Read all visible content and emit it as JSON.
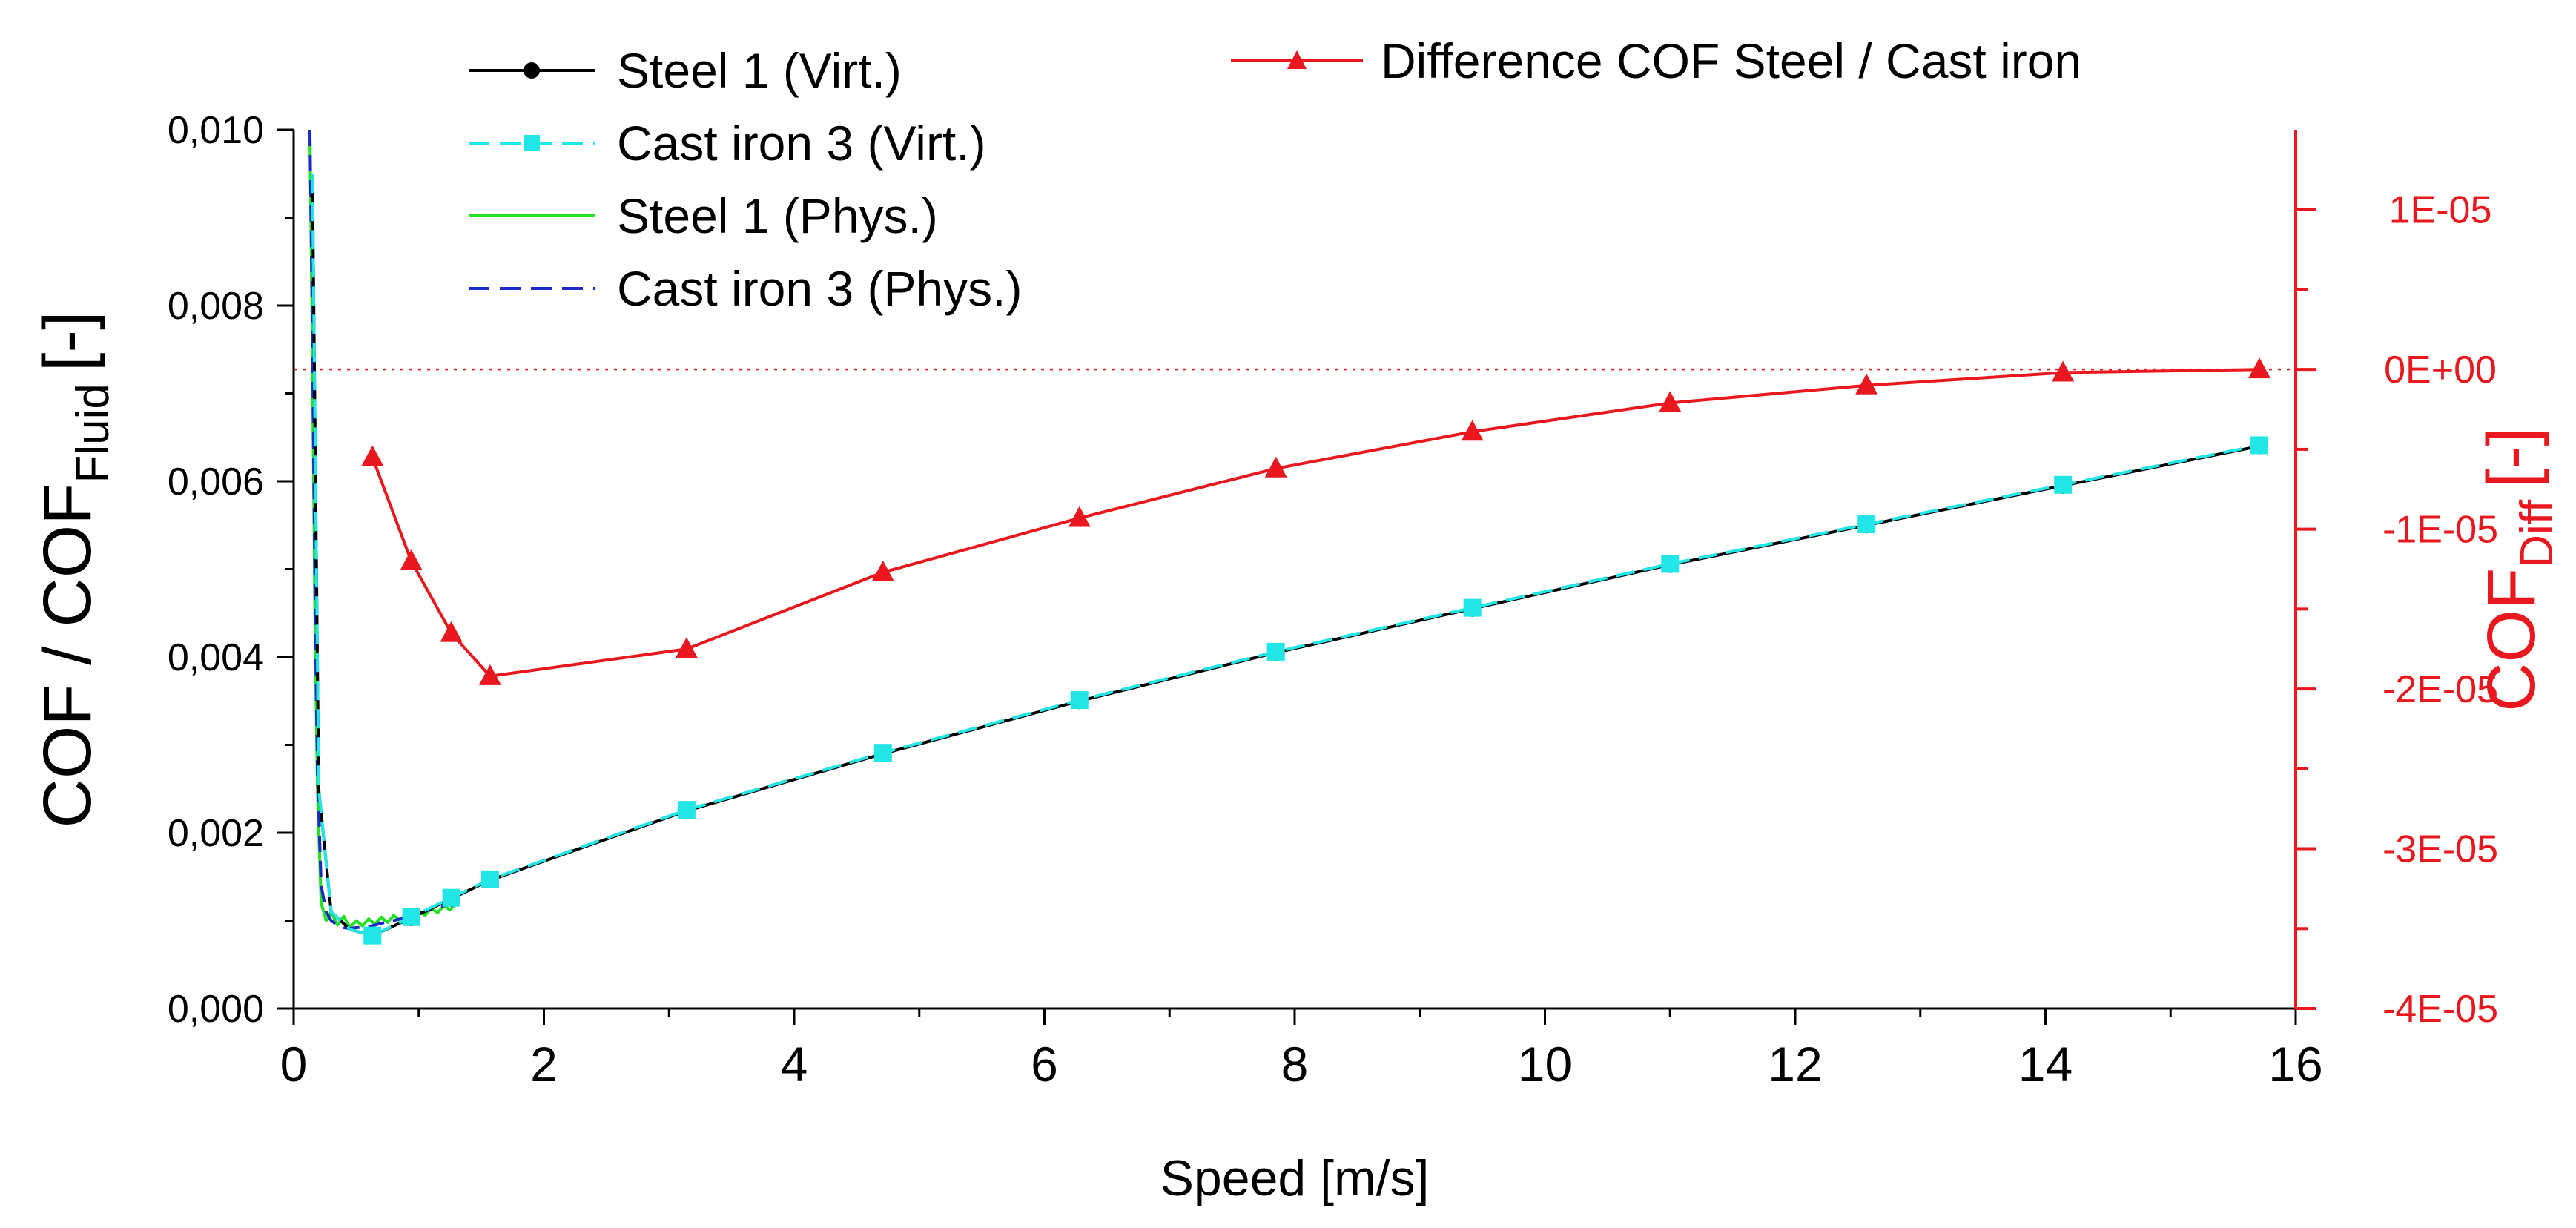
{
  "colors": {
    "axis": "#000000",
    "right_axis": "#e8181e",
    "steel_virt": "#000000",
    "cast_virt": "#22e6e6",
    "steel_phys": "#22e022",
    "cast_phys": "#1c2bc8",
    "difference": "#e8181e"
  },
  "chart_data": {
    "type": "line",
    "xlabel": "Speed [m/s]",
    "xlim": [
      0,
      16
    ],
    "x_ticks": [
      "0",
      "2",
      "4",
      "6",
      "8",
      "10",
      "12",
      "14",
      "16"
    ],
    "ylabel_main": "COF / COF",
    "ylabel_sub": "Fluid",
    "ylabel_bracket": "[-]",
    "ylim": [
      0,
      0.01
    ],
    "y_ticks": [
      "0,000",
      "0,002",
      "0,004",
      "0,006",
      "0,008",
      "0,010"
    ],
    "y2label_main": "COF",
    "y2label_sub": "Diff",
    "y2label_bracket": "[-]",
    "y2lim": [
      -4e-05,
      1.5e-05
    ],
    "y2_ticks": [
      "-4E-05",
      "-3E-05",
      "-2E-05",
      "-1E-05",
      "0E+00",
      "1E-05"
    ],
    "reference_line_y2": 0,
    "series": [
      {
        "name": "Steel 1 (Virt.)",
        "axis": "left",
        "style": "solid-circle",
        "x": [
          0.15,
          0.2,
          0.3,
          0.45,
          0.63,
          0.94,
          1.26,
          1.57,
          3.14,
          4.71,
          6.28,
          7.85,
          9.42,
          11.0,
          12.57,
          14.14,
          15.71
        ],
        "y": [
          0.0095,
          0.0025,
          0.0011,
          0.0009,
          0.00083,
          0.00103,
          0.00125,
          0.00146,
          0.00225,
          0.0029,
          0.0035,
          0.00405,
          0.00455,
          0.00505,
          0.0055,
          0.00595,
          0.0064
        ]
      },
      {
        "name": "Cast iron 3 (Virt.)",
        "axis": "left",
        "style": "dash-square",
        "x": [
          0.15,
          0.2,
          0.3,
          0.45,
          0.63,
          0.94,
          1.26,
          1.57,
          3.14,
          4.71,
          6.28,
          7.85,
          9.42,
          11.0,
          12.57,
          14.14,
          15.71
        ],
        "y": [
          0.0095,
          0.0025,
          0.0011,
          0.0009,
          0.00083,
          0.00104,
          0.00126,
          0.00147,
          0.00226,
          0.00291,
          0.00351,
          0.00406,
          0.00456,
          0.00506,
          0.00551,
          0.00596,
          0.00641
        ]
      },
      {
        "name": "Steel 1 (Phys.)",
        "axis": "left",
        "style": "solid",
        "x": [
          0.13,
          0.15,
          0.17,
          0.19,
          0.22,
          0.26,
          0.3,
          0.35,
          0.4,
          0.45,
          0.5,
          0.55,
          0.6,
          0.65,
          0.7,
          0.75,
          0.8,
          0.85,
          0.9,
          0.95,
          1.0,
          1.05,
          1.1,
          1.15,
          1.2,
          1.25,
          1.3
        ],
        "y": [
          0.01,
          0.0075,
          0.0045,
          0.0025,
          0.0012,
          0.001,
          0.0011,
          0.00095,
          0.00105,
          0.00092,
          0.001,
          0.00094,
          0.00102,
          0.00096,
          0.00104,
          0.00098,
          0.00106,
          0.001,
          0.00108,
          0.00103,
          0.00111,
          0.00106,
          0.00114,
          0.00109,
          0.00117,
          0.00112,
          0.0012
        ]
      },
      {
        "name": "Cast iron 3 (Phys.)",
        "axis": "left",
        "style": "dash",
        "x": [
          0.13,
          0.15,
          0.17,
          0.19,
          0.22,
          0.26,
          0.3,
          0.35,
          0.4,
          0.45,
          0.5,
          0.6,
          0.7,
          0.8,
          0.9,
          1.0,
          1.1,
          1.2,
          1.3
        ],
        "y": [
          0.01,
          0.0078,
          0.0048,
          0.0027,
          0.0014,
          0.0011,
          0.001,
          0.00095,
          0.00092,
          0.00091,
          0.00092,
          0.00093,
          0.00097,
          0.001,
          0.00104,
          0.00108,
          0.00113,
          0.00117,
          0.00122
        ]
      },
      {
        "name": "Difference COF Steel / Cast iron",
        "axis": "right",
        "style": "solid-triangle",
        "x": [
          0.63,
          0.94,
          1.26,
          1.57,
          3.14,
          4.71,
          6.28,
          7.85,
          9.42,
          11.0,
          12.57,
          14.14,
          15.71
        ],
        "y": [
          -5.5e-06,
          -1.2e-05,
          -1.65e-05,
          -1.92e-05,
          -1.75e-05,
          -1.27e-05,
          -9.3e-06,
          -6.2e-06,
          -3.9e-06,
          -2.1e-06,
          -1e-06,
          -2e-07,
          0
        ]
      }
    ]
  }
}
